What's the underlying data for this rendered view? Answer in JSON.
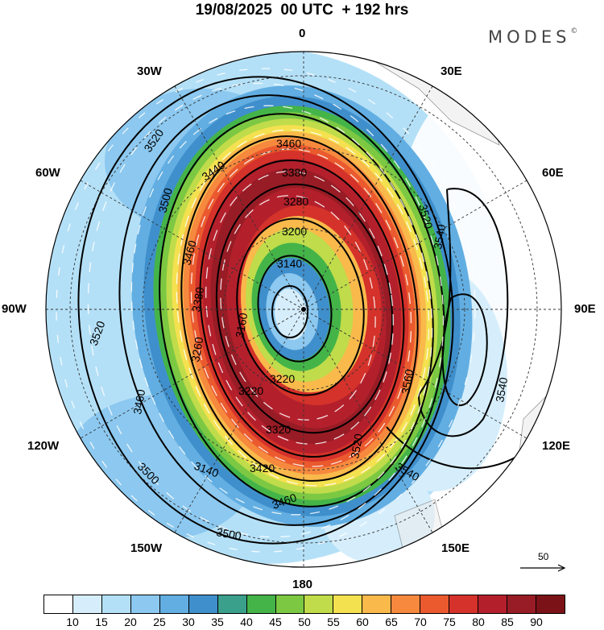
{
  "title": "19/08/2025  00 UTC  + 192 hrs",
  "brand": "MODES",
  "brand_mark": "©",
  "longitude_labels": {
    "n": "0",
    "nne": "30E",
    "ene": "60E",
    "e": "90E",
    "ese": "120E",
    "sse": "150E",
    "s": "180",
    "ssw": "150W",
    "wsw": "120W",
    "w": "90W",
    "wnw": "60W",
    "nnw": "30W"
  },
  "contour_labels": [
    "3520",
    "3460",
    "3380",
    "3440",
    "3500",
    "3460",
    "3380",
    "3280",
    "3200",
    "3140",
    "3520",
    "3540",
    "3520",
    "3560",
    "3540",
    "3540",
    "3520",
    "3460",
    "3260",
    "3220",
    "3320",
    "3420",
    "3140",
    "3500",
    "3500",
    "3460",
    "3220",
    "3160"
  ],
  "vector_reference": "50",
  "colorbar": {
    "ticks": [
      "10",
      "15",
      "20",
      "25",
      "30",
      "35",
      "40",
      "45",
      "50",
      "55",
      "60",
      "65",
      "70",
      "75",
      "80",
      "85",
      "90"
    ],
    "colors": [
      "#ffffff",
      "#d6eefb",
      "#b4e0f7",
      "#8cc8ef",
      "#62aee2",
      "#3f8fcc",
      "#3aa08c",
      "#44b449",
      "#7cc843",
      "#c0dc4a",
      "#f4e150",
      "#f9b94b",
      "#f6893e",
      "#ea5a2e",
      "#d4322a",
      "#b3202c",
      "#981c25",
      "#7b1218"
    ]
  },
  "speed_field": {
    "quantity": "wind speed",
    "levels": [
      10,
      15,
      20,
      25,
      30,
      35,
      40,
      45,
      50,
      55,
      60,
      65,
      70,
      75,
      80,
      85,
      90
    ],
    "jet": {
      "description_levels_present": [
        45,
        50,
        55,
        60,
        65,
        70,
        75,
        80,
        85,
        90
      ]
    }
  }
}
